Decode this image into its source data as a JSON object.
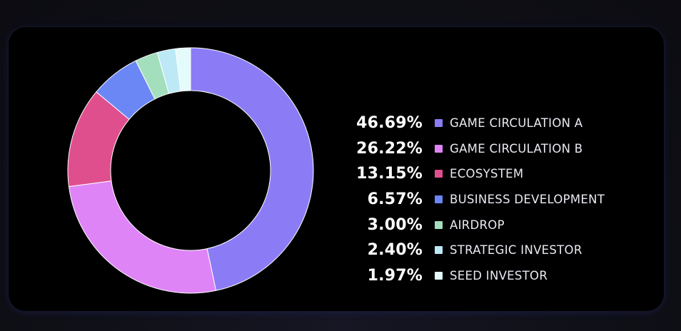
{
  "chart_data": {
    "type": "pie",
    "style": "donut",
    "legend_position": "right",
    "slices": [
      {
        "label": "GAME CIRCULATION A",
        "value": 46.69,
        "value_label": "46.69%",
        "color": "#8b7cf6"
      },
      {
        "label": "GAME CIRCULATION B",
        "value": 26.22,
        "value_label": "26.22%",
        "color": "#df84f6"
      },
      {
        "label": "ECOSYSTEM",
        "value": 13.15,
        "value_label": "13.15%",
        "color": "#e04f8d"
      },
      {
        "label": "BUSINESS DEVELOPMENT",
        "value": 6.57,
        "value_label": "6.57%",
        "color": "#6b87f6"
      },
      {
        "label": "AIRDROP",
        "value": 3.0,
        "value_label": "3.00%",
        "color": "#a3dfbd"
      },
      {
        "label": "STRATEGIC INVESTOR",
        "value": 2.4,
        "value_label": "2.40%",
        "color": "#bde9f7"
      },
      {
        "label": "SEED INVESTOR",
        "value": 1.97,
        "value_label": "1.97%",
        "color": "#e4fbfb"
      }
    ]
  }
}
